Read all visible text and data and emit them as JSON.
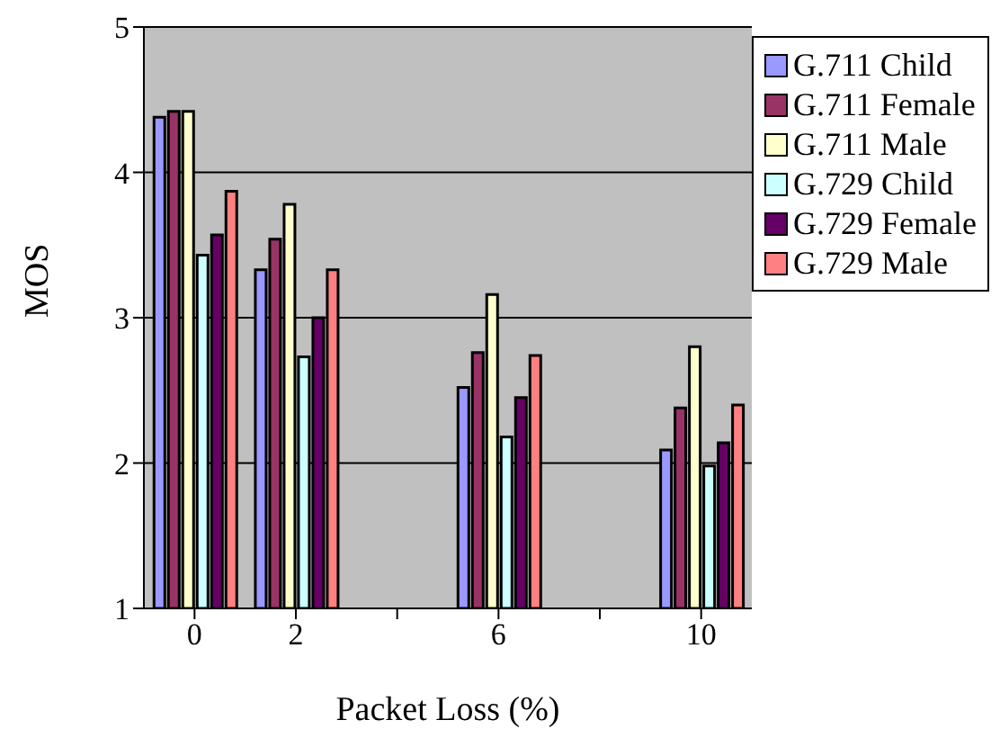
{
  "chart_data": {
    "type": "bar",
    "xlabel": "Packet Loss (%)",
    "ylabel": "MOS",
    "categories": [
      "0",
      "2",
      null,
      "6",
      null,
      "10"
    ],
    "series": [
      {
        "name": "G.711 Child",
        "color": "#9999ff",
        "values": [
          4.38,
          3.33,
          null,
          2.52,
          null,
          2.09
        ]
      },
      {
        "name": "G.711 Female",
        "color": "#993366",
        "values": [
          4.42,
          3.54,
          null,
          2.76,
          null,
          2.38
        ]
      },
      {
        "name": "G.711 Male",
        "color": "#ffffcc",
        "values": [
          4.42,
          3.78,
          null,
          3.16,
          null,
          2.8
        ]
      },
      {
        "name": "G.729 Child",
        "color": "#ccffff",
        "values": [
          3.43,
          2.73,
          null,
          2.18,
          null,
          1.98
        ]
      },
      {
        "name": "G.729 Female",
        "color": "#660066",
        "values": [
          3.57,
          3.0,
          null,
          2.45,
          null,
          2.14
        ]
      },
      {
        "name": "G.729 Male",
        "color": "#ff8080",
        "values": [
          3.87,
          3.33,
          null,
          2.74,
          null,
          2.4
        ]
      }
    ],
    "ylim": [
      1,
      5
    ],
    "yticks": [
      1,
      2,
      3,
      4,
      5
    ],
    "grid": "y",
    "legend": "top right"
  }
}
